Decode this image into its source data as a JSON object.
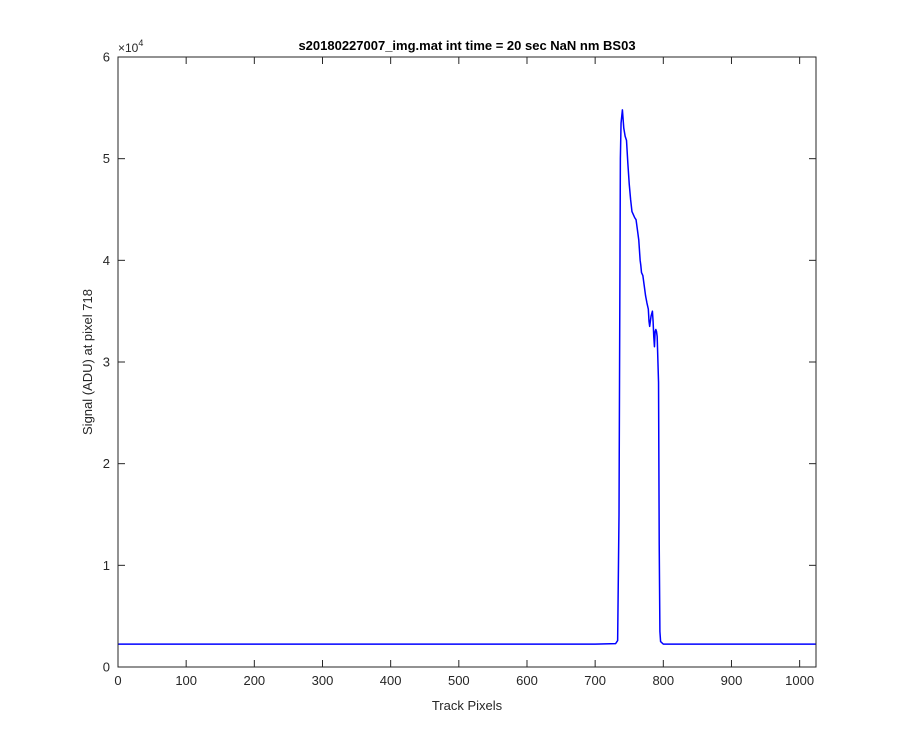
{
  "chart_data": {
    "type": "line",
    "title": "s20180227007_img.mat int time = 20 sec  NaN nm BS03",
    "xlabel": "Track Pixels",
    "ylabel": "Signal (ADU) at pixel 718",
    "xlim": [
      0,
      1024
    ],
    "ylim": [
      0,
      60000
    ],
    "x_ticks": [
      0,
      100,
      200,
      300,
      400,
      500,
      600,
      700,
      800,
      900,
      1000
    ],
    "x_tick_labels": [
      "0",
      "100",
      "200",
      "300",
      "400",
      "500",
      "600",
      "700",
      "800",
      "900",
      "1000"
    ],
    "y_ticks": [
      0,
      10000,
      20000,
      30000,
      40000,
      50000,
      60000
    ],
    "y_tick_labels": [
      "0",
      "1",
      "2",
      "3",
      "4",
      "5",
      "6"
    ],
    "y_exponent_base": "×10",
    "y_exponent_power": "4",
    "grid": false,
    "line_color": "#0000ff",
    "series": [
      {
        "x": [
          0,
          100,
          200,
          300,
          400,
          500,
          600,
          700,
          730,
          733,
          735,
          737,
          738,
          740,
          742,
          744,
          746,
          748,
          750,
          752,
          754,
          756,
          758,
          760,
          762,
          764,
          766,
          767,
          768,
          770,
          772,
          774,
          776,
          778,
          779,
          780,
          782,
          784,
          785,
          786,
          787,
          788,
          789,
          790,
          791,
          793,
          794,
          795,
          796,
          800,
          900,
          1024
        ],
        "y": [
          2250,
          2250,
          2250,
          2250,
          2250,
          2250,
          2250,
          2250,
          2300,
          2600,
          15000,
          50000,
          53500,
          54800,
          53000,
          52200,
          51800,
          49500,
          47500,
          46000,
          44800,
          44500,
          44200,
          44000,
          43000,
          42000,
          40000,
          39500,
          38800,
          38500,
          37500,
          36500,
          35800,
          35200,
          34000,
          33500,
          34500,
          35000,
          34000,
          32500,
          31500,
          33000,
          33200,
          33000,
          32500,
          28000,
          12000,
          3500,
          2500,
          2250,
          2250,
          2250
        ]
      }
    ]
  }
}
